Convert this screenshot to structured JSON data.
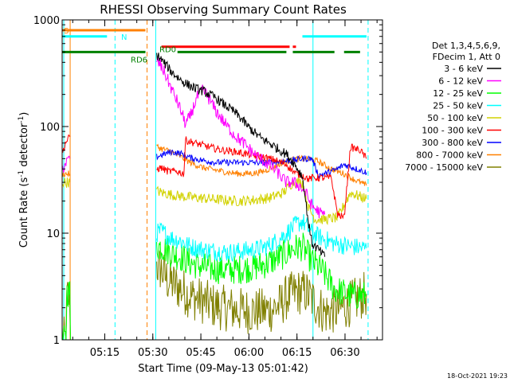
{
  "chart_data": {
    "type": "line",
    "title": "RHESSI Observing Summary Count Rates",
    "xlabel": "Start Time (09-May-13 05:01:42)",
    "ylabel_main": "Count Rate (s",
    "ylabel_sup1": "-1",
    "ylabel_mid": " detector",
    "ylabel_sup2": "-1",
    "ylabel_end": ")",
    "yscale": "log",
    "ylim": [
      1,
      1000
    ],
    "xlim_minutes": [
      0,
      100
    ],
    "x_ticks": [
      {
        "label": "05:15",
        "min": 13.3
      },
      {
        "label": "05:30",
        "min": 28.3
      },
      {
        "label": "05:45",
        "min": 43.3
      },
      {
        "label": "06:00",
        "min": 58.3
      },
      {
        "label": "06:15",
        "min": 73.3
      },
      {
        "label": "06:30",
        "min": 88.3
      }
    ],
    "y_ticks": [
      {
        "label": "1",
        "v": 1
      },
      {
        "label": "10",
        "v": 10
      },
      {
        "label": "100",
        "v": 100
      },
      {
        "label": "1000",
        "v": 1000
      }
    ],
    "legend": {
      "position": "right",
      "header_lines": [
        "Det 1,3,4,5,6,9,",
        "FDecim 1, Att 0"
      ],
      "entries": [
        {
          "label": "3 - 6 keV",
          "color": "#000000"
        },
        {
          "label": "6 - 12 keV",
          "color": "#ff00ff"
        },
        {
          "label": "12 - 25 keV",
          "color": "#00ff00"
        },
        {
          "label": "25 - 50 keV",
          "color": "#00ffff"
        },
        {
          "label": "50 - 100 keV",
          "color": "#d2d200"
        },
        {
          "label": "100 - 300 keV",
          "color": "#ff0000"
        },
        {
          "label": "300 - 800 keV",
          "color": "#0000ff"
        },
        {
          "label": "800 - 7000 keV",
          "color": "#ff8000"
        },
        {
          "label": "7000 - 15000 keV",
          "color": "#808000"
        }
      ]
    },
    "flag_labels": {
      "s": "S",
      "n": "N",
      "rd0": "RD0",
      "rd6": "RD6"
    },
    "flags": [
      {
        "label_key": "s",
        "color": "#ff8000",
        "value": 800,
        "segments": [
          [
            0,
            26
          ]
        ]
      },
      {
        "label_key": "n",
        "color": "#00ffff",
        "value": 700,
        "segments": [
          [
            0,
            14
          ],
          [
            75,
            95
          ]
        ]
      },
      {
        "label_key": "rd0",
        "color": "#ff0000",
        "value": 560,
        "segments": [
          [
            31,
            71
          ],
          [
            72,
            73
          ]
        ]
      },
      {
        "label_key": "rd6",
        "color": "#008000",
        "value": 500,
        "segments": [
          [
            0,
            26
          ],
          [
            36,
            70
          ],
          [
            72,
            85
          ],
          [
            88,
            93
          ]
        ]
      }
    ],
    "vlines": [
      {
        "min": 0.5,
        "color": "#00ffff",
        "style": "solid"
      },
      {
        "min": 2.5,
        "color": "#ff8000",
        "style": "solid"
      },
      {
        "min": 16.5,
        "color": "#00ffff",
        "style": "dash"
      },
      {
        "min": 26.5,
        "color": "#ff8000",
        "style": "dash"
      },
      {
        "min": 29.2,
        "color": "#00ffff",
        "style": "solid"
      },
      {
        "min": 78.3,
        "color": "#00ffff",
        "style": "solid"
      },
      {
        "min": 95.5,
        "color": "#00ffff",
        "style": "dash"
      }
    ],
    "series": [
      {
        "color": "#808000",
        "amp": 0.22,
        "segments": [
          {
            "x": [
              0,
              1.2,
              1.5,
              2.4,
              2.6
            ],
            "y": [
              1,
              1,
              2.5,
              2.5,
              1
            ]
          },
          {
            "x": [
              29.5,
              31,
              33,
              35,
              37,
              39,
              41,
              44,
              47,
              50,
              55,
              60,
              65,
              68,
              70,
              73,
              76,
              79,
              82,
              86,
              90,
              93,
              95
            ],
            "y": [
              5,
              4.5,
              3.6,
              3.3,
              3,
              2.7,
              2.5,
              2.3,
              2.1,
              2.0,
              1.9,
              1.85,
              1.9,
              2.1,
              2.5,
              2.8,
              2.8,
              2.2,
              1.8,
              1.9,
              2.2,
              2.5,
              2.7
            ]
          }
        ]
      },
      {
        "color": "#00ff00",
        "amp": 0.14,
        "segments": [
          {
            "x": [
              0,
              1.2,
              1.5,
              2.4,
              2.6
            ],
            "y": [
              1,
              1,
              2.8,
              2.8,
              1
            ]
          },
          {
            "x": [
              29.5,
              31,
              34,
              37,
              40,
              44,
              48,
              52,
              56,
              60,
              64,
              67,
              70,
              72,
              75,
              78,
              81,
              85,
              90,
              95
            ],
            "y": [
              7.5,
              7.5,
              6.5,
              6,
              5.3,
              4.8,
              4.6,
              4.5,
              4.6,
              4.8,
              5.2,
              5.8,
              6.5,
              7.2,
              7.5,
              5.5,
              4.5,
              3,
              2.6,
              2.6
            ]
          }
        ]
      },
      {
        "color": "#00ffff",
        "amp": 0.09,
        "segments": [
          {
            "x": [
              29.5,
              31,
              34,
              37,
              40,
              44,
              48,
              52,
              56,
              60,
              64,
              67,
              70,
              73,
              75,
              78,
              81,
              85,
              90,
              95
            ],
            "y": [
              10,
              10.5,
              9,
              8.5,
              7.5,
              7,
              6.8,
              6.6,
              6.8,
              7,
              7.5,
              8.5,
              10,
              12,
              13,
              10,
              9,
              8,
              7.5,
              7.2
            ]
          }
        ]
      },
      {
        "color": "#d2d200",
        "amp": 0.05,
        "segments": [
          {
            "x": [
              0,
              2.4
            ],
            "y": [
              30,
              30
            ]
          },
          {
            "x": [
              29.5,
              31,
              34,
              38,
              42,
              46,
              50,
              55,
              60,
              65,
              69,
              72,
              75,
              77,
              79,
              82,
              86,
              90,
              93,
              95
            ],
            "y": [
              25,
              24,
              23,
              22,
              21.5,
              21,
              20.5,
              20,
              20.5,
              21.5,
              24,
              30,
              30,
              17,
              13.5,
              13.5,
              14,
              24,
              22,
              21
            ]
          }
        ]
      },
      {
        "color": "#ff8000",
        "amp": 0.03,
        "segments": [
          {
            "x": [
              0,
              2.4
            ],
            "y": [
              36,
              36
            ]
          },
          {
            "x": [
              29.5,
              31,
              34,
              37,
              40,
              44,
              48,
              52,
              56,
              60,
              63,
              66,
              69,
              72,
              75,
              78,
              80,
              84,
              88,
              91,
              95
            ],
            "y": [
              65,
              62,
              58,
              52,
              46,
              41,
              39,
              37,
              36,
              36.5,
              38,
              42,
              46,
              49,
              50,
              49,
              47,
              40,
              36,
              32,
              28
            ]
          }
        ]
      },
      {
        "color": "#0000ff",
        "amp": 0.03,
        "segments": [
          {
            "x": [
              29.5,
              31,
              34,
              37,
              40,
              44,
              48,
              52,
              56,
              60,
              64,
              68,
              72,
              75,
              78,
              80,
              82,
              86,
              88,
              92,
              95
            ],
            "y": [
              52,
              54,
              58,
              56,
              51,
              48,
              46,
              46,
              46,
              46,
              46,
              47,
              48,
              50,
              50,
              35,
              36,
              40,
              44,
              40,
              37
            ]
          }
        ]
      },
      {
        "color": "#ff0000",
        "amp": 0.035,
        "segments": [
          {
            "x": [
              0,
              1,
              2.4
            ],
            "y": [
              55,
              70,
              80
            ]
          },
          {
            "x": [
              29.5,
              31,
              33,
              36,
              38,
              38.5,
              40,
              43,
              46,
              50,
              54,
              58,
              62,
              66,
              70,
              73,
              75,
              77,
              78,
              80,
              84,
              86,
              88,
              90,
              93,
              95
            ],
            "y": [
              40,
              41,
              38,
              38,
              36,
              75,
              72,
              68,
              64,
              60,
              58,
              55,
              52,
              49,
              44,
              36,
              35,
              32,
              33,
              33,
              33,
              15,
              14,
              64,
              60,
              50
            ]
          }
        ]
      },
      {
        "color": "#ff00ff",
        "amp": 0.06,
        "segments": [
          {
            "x": [
              0,
              1,
              2.4
            ],
            "y": [
              40,
              45,
              50
            ]
          },
          {
            "x": [
              29.5,
              30.5,
              32,
              34,
              36,
              37.5,
              38.5,
              40,
              42,
              44,
              46,
              48,
              51,
              54,
              57,
              60,
              64,
              67,
              69,
              70,
              72,
              74,
              76,
              78,
              81,
              82
            ],
            "y": [
              420,
              380,
              320,
              230,
              170,
              130,
              105,
              125,
              185,
              220,
              180,
              140,
              105,
              82,
              68,
              55,
              45,
              38,
              32,
              30,
              30,
              28,
              24,
              18,
              15,
              15
            ]
          }
        ]
      },
      {
        "color": "#000000",
        "amp": 0.045,
        "segments": [
          {
            "x": [
              29.5,
              30.5,
              32,
              34,
              36,
              38,
              40,
              42,
              44,
              46,
              48,
              50,
              52,
              54,
              56,
              58,
              60,
              62,
              64,
              66,
              68,
              70,
              72,
              74,
              75,
              76,
              77,
              78,
              80,
              81,
              82
            ],
            "y": [
              470,
              440,
              390,
              330,
              290,
              260,
              240,
              225,
              215,
              200,
              185,
              165,
              150,
              135,
              118,
              100,
              88,
              78,
              72,
              66,
              60,
              55,
              47,
              38,
              34,
              20,
              12,
              8,
              7,
              6.5,
              6
            ]
          }
        ]
      }
    ]
  },
  "footer": {
    "date_stamp": "18-Oct-2021 19:23"
  }
}
